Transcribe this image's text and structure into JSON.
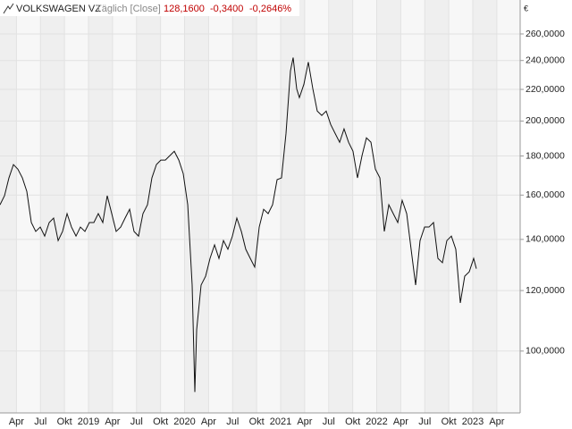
{
  "chart_data": {
    "type": "line",
    "log_scale_y": true,
    "grid": true,
    "header": {
      "name": "VOLKSWAGEN VZ",
      "mode": "Täglich [Close]",
      "last": "128,1600",
      "change": "-0,3400",
      "change_pct": "-0,2646%"
    },
    "currency": "€",
    "x": [
      2018.079,
      2018.126,
      2018.172,
      2018.219,
      2018.265,
      2018.312,
      2018.358,
      2018.405,
      2018.451,
      2018.498,
      2018.544,
      2018.591,
      2018.637,
      2018.684,
      2018.73,
      2018.777,
      2018.823,
      2018.87,
      2018.916,
      2018.963,
      2019.009,
      2019.056,
      2019.102,
      2019.149,
      2019.195,
      2019.242,
      2019.288,
      2019.335,
      2019.381,
      2019.428,
      2019.474,
      2019.521,
      2019.567,
      2019.614,
      2019.66,
      2019.707,
      2019.753,
      2019.8,
      2019.847,
      2019.893,
      2019.94,
      2019.986,
      2020.033,
      2020.079,
      2020.107,
      2020.126,
      2020.172,
      2020.219,
      2020.265,
      2020.312,
      2020.358,
      2020.405,
      2020.451,
      2020.498,
      2020.544,
      2020.591,
      2020.637,
      2020.684,
      2020.73,
      2020.777,
      2020.823,
      2020.87,
      2020.916,
      2020.963,
      2021.009,
      2021.056,
      2021.102,
      2021.13,
      2021.167,
      2021.195,
      2021.242,
      2021.288,
      2021.335,
      2021.381,
      2021.428,
      2021.474,
      2021.521,
      2021.567,
      2021.614,
      2021.66,
      2021.707,
      2021.753,
      2021.8,
      2021.847,
      2021.893,
      2021.94,
      2021.986,
      2022.033,
      2022.079,
      2022.126,
      2022.172,
      2022.219,
      2022.265,
      2022.312,
      2022.358,
      2022.405,
      2022.451,
      2022.498,
      2022.544,
      2022.591,
      2022.637,
      2022.684,
      2022.73,
      2022.777,
      2022.823,
      2022.87,
      2022.916,
      2022.963,
      2023.009,
      2023.037
    ],
    "series": [
      {
        "name": "VOLKSWAGEN VZ",
        "color": "#111111",
        "values": [
          155.4,
          159.7,
          168.5,
          175.4,
          173.0,
          168.5,
          161.8,
          147.3,
          143.4,
          145.3,
          141.4,
          147.3,
          149.3,
          139.5,
          143.4,
          151.3,
          145.3,
          141.4,
          145.3,
          143.4,
          147.3,
          147.3,
          151.3,
          147.3,
          159.7,
          151.3,
          143.4,
          145.3,
          149.3,
          153.3,
          143.4,
          141.4,
          151.3,
          155.4,
          168.5,
          175.4,
          177.8,
          177.8,
          180.2,
          182.6,
          177.8,
          170.7,
          155.4,
          122.0,
          88.4,
          106.7,
          122.0,
          125.3,
          132.2,
          137.7,
          132.2,
          139.5,
          135.9,
          141.4,
          149.3,
          143.4,
          135.9,
          132.2,
          128.8,
          145.3,
          153.3,
          151.3,
          155.4,
          167.6,
          168.5,
          192.7,
          232.6,
          242.1,
          220.4,
          214.6,
          223.4,
          238.9,
          220.4,
          206.1,
          203.4,
          206.1,
          197.9,
          192.7,
          187.6,
          195.3,
          187.6,
          182.6,
          168.5,
          180.2,
          190.1,
          187.6,
          173.0,
          168.5,
          143.4,
          155.4,
          151.3,
          147.3,
          157.5,
          151.3,
          135.9,
          122.0,
          139.5,
          145.3,
          145.3,
          147.3,
          132.2,
          130.5,
          139.5,
          141.4,
          135.9,
          115.6,
          125.3,
          127.0,
          132.2,
          128.16
        ]
      }
    ],
    "xlim": [
      2018.079,
      2023.493
    ],
    "xticks": [
      {
        "value": 2018.25,
        "label": "Apr"
      },
      {
        "value": 2018.5,
        "label": "Jul"
      },
      {
        "value": 2018.75,
        "label": "Okt"
      },
      2019,
      {
        "value": 2019.25,
        "label": "Apr"
      },
      {
        "value": 2019.5,
        "label": "Jul"
      },
      {
        "value": 2019.75,
        "label": "Okt"
      },
      2020,
      {
        "value": 2020.25,
        "label": "Apr"
      },
      {
        "value": 2020.5,
        "label": "Jul"
      },
      {
        "value": 2020.75,
        "label": "Okt"
      },
      2021,
      {
        "value": 2021.25,
        "label": "Apr"
      },
      {
        "value": 2021.5,
        "label": "Jul"
      },
      {
        "value": 2021.75,
        "label": "Okt"
      },
      2022,
      {
        "value": 2022.25,
        "label": "Apr"
      },
      {
        "value": 2022.5,
        "label": "Jul"
      },
      {
        "value": 2022.75,
        "label": "Okt"
      },
      2023,
      {
        "value": 2023.25,
        "label": "Apr"
      }
    ],
    "ylim": [
      83,
      288
    ],
    "yticks": [
      {
        "value": 100,
        "label": "100,0000"
      },
      {
        "value": 120,
        "label": "120,0000"
      },
      {
        "value": 140,
        "label": "140,0000"
      },
      {
        "value": 160,
        "label": "160,0000"
      },
      {
        "value": 180,
        "label": "180,0000"
      },
      {
        "value": 200,
        "label": "200,0000"
      },
      {
        "value": 220,
        "label": "220,0000"
      },
      {
        "value": 240,
        "label": "240,0000"
      },
      {
        "value": 260,
        "label": "260,0000"
      }
    ]
  }
}
